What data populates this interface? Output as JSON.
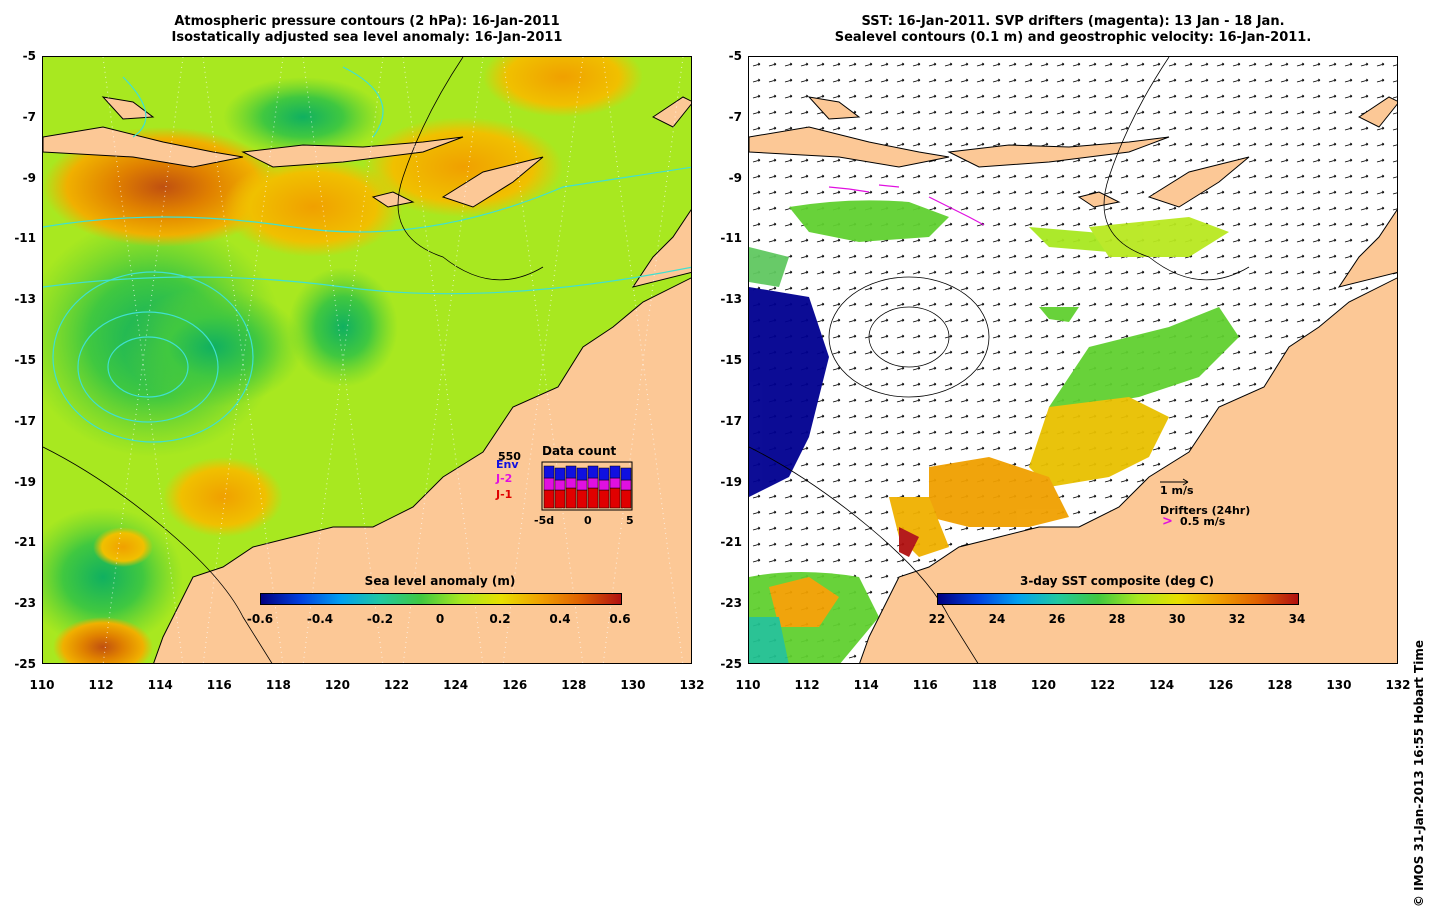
{
  "left_panel": {
    "title_line1": "Atmospheric pressure contours (2 hPa): 16-Jan-2011",
    "title_line2": "Isostatically adjusted sea level anomaly: 16-Jan-2011",
    "colorbar_title": "Sea level anomaly (m)",
    "colorbar_ticks": [
      "-0.6",
      "-0.4",
      "-0.2",
      "0",
      "0.2",
      "0.4",
      "0.6"
    ],
    "data_count": {
      "title": "Data count",
      "max_label": "550",
      "series": [
        {
          "name": "Env",
          "color": "#1010e0"
        },
        {
          "name": "J-2",
          "color": "#e010e0"
        },
        {
          "name": "J-1",
          "color": "#e00000"
        }
      ],
      "x_ticks": [
        "-5d",
        "0",
        "5"
      ]
    }
  },
  "right_panel": {
    "title_line1": "SST: 16-Jan-2011. SVP drifters (magenta): 13 Jan - 18 Jan.",
    "title_line2": "Sealevel contours (0.1 m) and geostrophic velocity: 16-Jan-2011.",
    "colorbar_title": "3-day SST composite (deg C)",
    "colorbar_ticks": [
      "22",
      "24",
      "26",
      "28",
      "30",
      "32",
      "34"
    ],
    "velocity_scale_label": "1 m/s",
    "drifter_title": "Drifters (24hr)",
    "drifter_scale_label": "0.5 m/s"
  },
  "axes": {
    "y_ticks": [
      "-5",
      "-7",
      "-9",
      "-11",
      "-13",
      "-15",
      "-17",
      "-19",
      "-21",
      "-23",
      "-25"
    ],
    "x_ticks": [
      "110",
      "112",
      "114",
      "116",
      "118",
      "120",
      "122",
      "124",
      "126",
      "128",
      "130",
      "132"
    ]
  },
  "colors": {
    "land": "#fcc896",
    "ocean_mid": "#b4f000",
    "positive_anomaly": "#f0a000",
    "negative_anomaly": "#20c040",
    "contour": "#40e0d0"
  },
  "copyright": "© IMOS 31-Jan-2013 16:55 Hobart Time"
}
